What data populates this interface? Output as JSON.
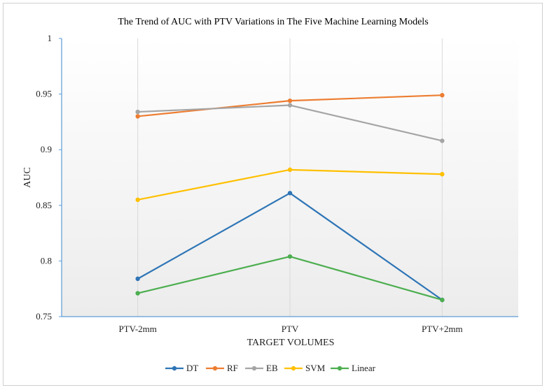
{
  "chart_data": {
    "type": "line",
    "title": "The Trend of AUC with PTV Variations in The Five Machine Learning Models",
    "xlabel": "TARGET VOLUMES",
    "ylabel": "AUC",
    "categories": [
      "PTV-2mm",
      "PTV",
      "PTV+2mm"
    ],
    "ylim": [
      0.75,
      1
    ],
    "yticks": [
      "0.75",
      "0.8",
      "0.85",
      "0.9",
      "0.95",
      "1"
    ],
    "grid": "vertical",
    "legend_position": "bottom",
    "series": [
      {
        "name": "DT",
        "color": "#2e75b6",
        "values": [
          0.784,
          0.861,
          0.765
        ]
      },
      {
        "name": "RF",
        "color": "#ed7d31",
        "values": [
          0.93,
          0.944,
          0.949
        ]
      },
      {
        "name": "EB",
        "color": "#a5a5a5",
        "values": [
          0.934,
          0.94,
          0.908
        ]
      },
      {
        "name": "SVM",
        "color": "#ffc000",
        "values": [
          0.855,
          0.882,
          0.878
        ]
      },
      {
        "name": "Linear",
        "color": "#4cae4f",
        "values": [
          0.771,
          0.804,
          0.765
        ]
      }
    ]
  }
}
